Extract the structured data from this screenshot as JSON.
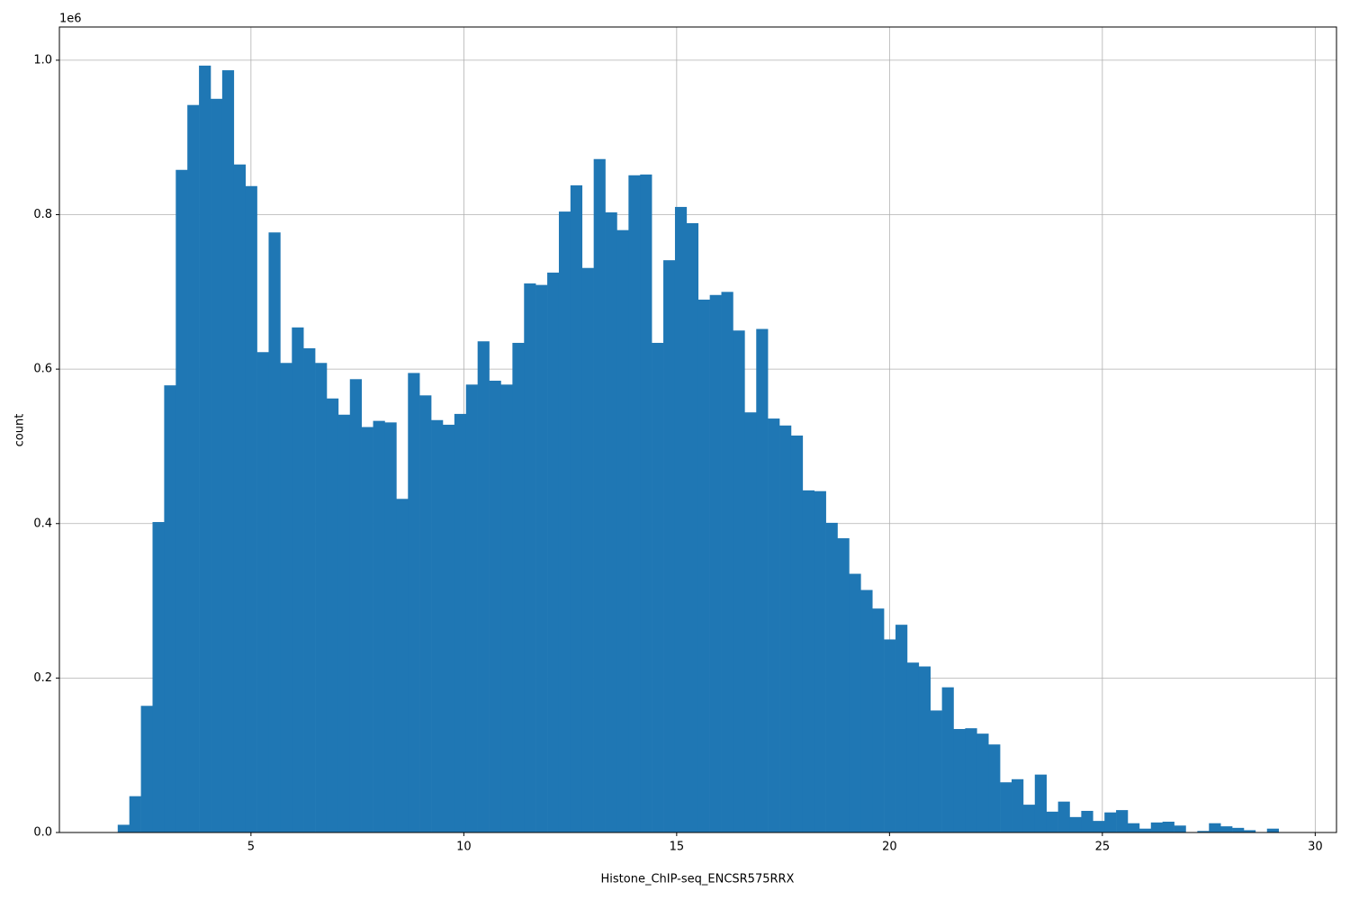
{
  "chart_data": {
    "type": "histogram",
    "x_label": "Histone_ChIP-seq_ENCSR575RRX",
    "y_label": "count",
    "y_offset_text": "1e6",
    "color": "#1f77b4",
    "grid": true,
    "xlim": [
      0.5,
      30.5
    ],
    "ylim": [
      0,
      1043000
    ],
    "xticks": [
      5,
      10,
      15,
      20,
      25,
      30
    ],
    "yticks": [
      {
        "value": 0,
        "label": "0.0"
      },
      {
        "value": 200000,
        "label": "0.2"
      },
      {
        "value": 400000,
        "label": "0.4"
      },
      {
        "value": 600000,
        "label": "0.6"
      },
      {
        "value": 800000,
        "label": "0.8"
      },
      {
        "value": 1000000,
        "label": "1.0"
      }
    ],
    "bins": [
      1.87,
      2.143,
      2.415,
      2.688,
      2.961,
      3.234,
      3.506,
      3.779,
      4.052,
      4.324,
      4.597,
      4.87,
      5.142,
      5.415,
      5.688,
      5.961,
      6.233,
      6.506,
      6.779,
      7.051,
      7.324,
      7.597,
      7.869,
      8.142,
      8.415,
      8.688,
      8.96,
      9.233,
      9.506,
      9.778,
      10.051,
      10.324,
      10.596,
      10.869,
      11.142,
      11.415,
      11.687,
      11.96,
      12.233,
      12.505,
      12.778,
      13.051,
      13.323,
      13.596,
      13.869,
      14.142,
      14.414,
      14.687,
      14.96,
      15.232,
      15.505,
      15.778,
      16.05,
      16.323,
      16.596,
      16.869,
      17.141,
      17.414,
      17.687,
      17.959,
      18.232,
      18.505,
      18.777,
      19.05,
      19.323,
      19.596,
      19.868,
      20.141,
      20.414,
      20.686,
      20.959,
      21.232,
      21.504,
      21.777,
      22.05,
      22.323,
      22.595,
      22.868,
      23.141,
      23.413,
      23.686,
      23.959,
      24.231,
      24.504,
      24.777,
      25.05,
      25.322,
      25.595,
      25.868,
      26.14,
      26.413,
      26.686,
      26.958,
      27.231,
      27.504,
      27.777,
      28.049,
      28.322,
      28.595,
      28.867,
      29.14
    ],
    "counts": [
      10000,
      47000,
      164000,
      402000,
      579000,
      858000,
      942000,
      993000,
      950000,
      987000,
      865000,
      837000,
      622000,
      777000,
      608000,
      654000,
      627000,
      608000,
      562000,
      541000,
      587000,
      525000,
      533000,
      531000,
      432000,
      595000,
      566000,
      534000,
      528000,
      542000,
      580000,
      636000,
      585000,
      580000,
      634000,
      711000,
      709000,
      725000,
      804000,
      838000,
      731000,
      872000,
      803000,
      780000,
      851000,
      852000,
      634000,
      741000,
      810000,
      789000,
      690000,
      696000,
      700000,
      650000,
      544000,
      652000,
      536000,
      527000,
      514000,
      443000,
      442000,
      401000,
      381000,
      335000,
      314000,
      290000,
      250000,
      269000,
      220000,
      215000,
      158000,
      188000,
      134000,
      135000,
      128000,
      114000,
      65000,
      69000,
      36000,
      75000,
      27000,
      40000,
      20000,
      28000,
      15000,
      26000,
      29000,
      12000,
      5000,
      13000,
      14000,
      9000,
      0,
      2000,
      12000,
      8000,
      6000,
      3000,
      0,
      5000
    ]
  }
}
